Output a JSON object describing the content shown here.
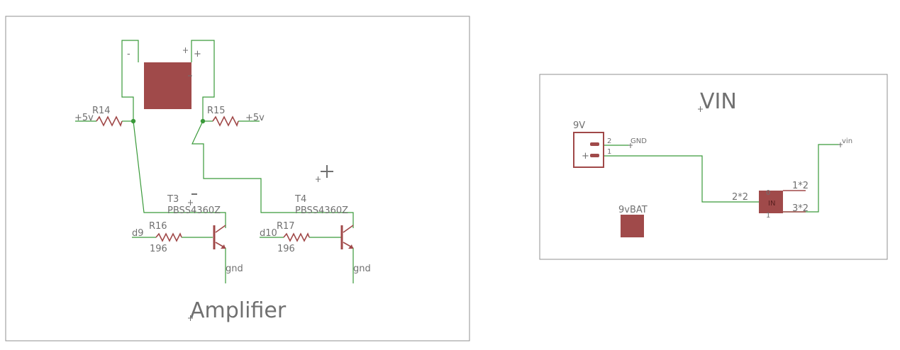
{
  "amplifier_sheet": {
    "title": "Amplifier",
    "pad_minus": "-",
    "pad_plus": "+",
    "r14": {
      "name": "R14",
      "net": "+5v"
    },
    "r15": {
      "name": "R15",
      "net": "+5v"
    },
    "t3": {
      "name": "T3",
      "value": "PBSS4360Z",
      "base_net": "d9",
      "emitter_net": "gnd"
    },
    "t4": {
      "name": "T4",
      "value": "PBSS4360Z",
      "base_net": "d10",
      "emitter_net": "gnd"
    },
    "r16": {
      "name": "R16",
      "value": "196"
    },
    "r17": {
      "name": "R17",
      "value": "196"
    }
  },
  "vin_sheet": {
    "title": "VIN",
    "connector": {
      "name": "9V",
      "pin2": "2",
      "pin1": "1",
      "plus_mark": "+",
      "pin2_net": "GND",
      "pin1_net": "vin"
    },
    "regulator": {
      "body_label": "IN",
      "pin_top": "0",
      "pin_bottom": "1",
      "left_pin": "2*2",
      "right_top_pin": "1*2",
      "right_bottom_pin": "3*2"
    },
    "battery": {
      "name": "9vBAT"
    }
  },
  "colors": {
    "wire": "#3a9a3a",
    "component": "#a04a4a",
    "text": "#707070",
    "frame": "#909090"
  }
}
